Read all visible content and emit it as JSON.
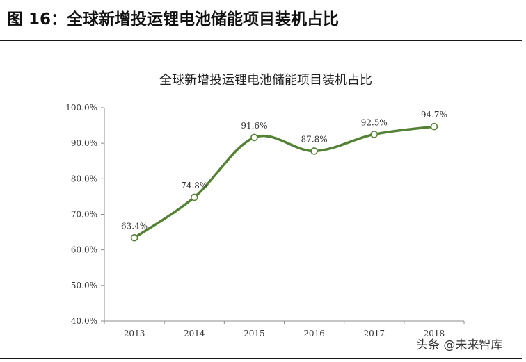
{
  "figure": {
    "label": "图 16：全球新增投运锂电池储能项目装机占比"
  },
  "watermark": "头条 @未来智库",
  "chart_data": {
    "type": "line",
    "title": "全球新增投运锂电池储能项目装机占比",
    "x": [
      "2013",
      "2014",
      "2015",
      "2016",
      "2017",
      "2018"
    ],
    "series": [
      {
        "values": [
          63.4,
          74.8,
          91.6,
          87.8,
          92.5,
          94.7
        ],
        "labels": [
          "63.4%",
          "74.8%",
          "91.6%",
          "87.8%",
          "92.5%",
          "94.7%"
        ],
        "color": "#548235"
      }
    ],
    "ylim": [
      40,
      100
    ],
    "yticks": [
      "40.0%",
      "50.0%",
      "60.0%",
      "70.0%",
      "80.0%",
      "90.0%",
      "100.0%"
    ],
    "xlabel": "",
    "ylabel": "",
    "grid": false,
    "smooth": true,
    "marker": "hollow-circle"
  }
}
